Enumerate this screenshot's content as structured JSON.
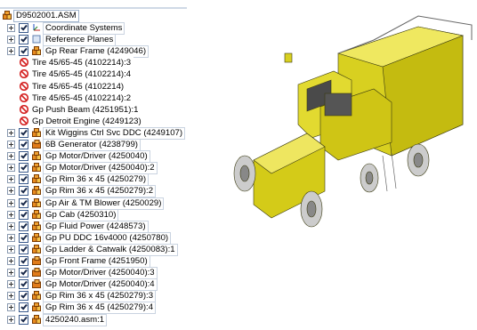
{
  "tree": {
    "root": "D9502001.ASM",
    "items": [
      {
        "label": "Coordinate Systems",
        "icon": "coord"
      },
      {
        "label": "Reference Planes",
        "icon": "plane"
      },
      {
        "label": "Gp Rear Frame (4249046)",
        "icon": "assembly"
      },
      {
        "label": "Tire 45/65-45 (4102214):3",
        "icon": "suppressed"
      },
      {
        "label": "Tire 45/65-45 (4102214):4",
        "icon": "suppressed"
      },
      {
        "label": "Tire 45/65-45 (4102214)",
        "icon": "suppressed"
      },
      {
        "label": "Tire 45/65-45 (4102214):2",
        "icon": "suppressed"
      },
      {
        "label": "Gp Push Beam (4251951):1",
        "icon": "suppressed"
      },
      {
        "label": "Gp Detroit Engine (4249123)",
        "icon": "suppressed"
      },
      {
        "label": "Kit Wiggins Ctrl Svc DDC (4249107)",
        "icon": "assembly"
      },
      {
        "label": "6B Generator (4238799)",
        "icon": "part"
      },
      {
        "label": "Gp Motor/Driver (4250040)",
        "icon": "assembly"
      },
      {
        "label": "Gp Motor/Driver (4250040):2",
        "icon": "assembly"
      },
      {
        "label": "Gp Rim 36 x 45 (4250279)",
        "icon": "assembly"
      },
      {
        "label": "Gp Rim 36 x 45 (4250279):2",
        "icon": "assembly"
      },
      {
        "label": "Gp Air & TM Blower (4250029)",
        "icon": "assembly"
      },
      {
        "label": "Gp Cab (4250310)",
        "icon": "assembly"
      },
      {
        "label": "Gp Fluid Power (4248573)",
        "icon": "assembly"
      },
      {
        "label": "Gp PU DDC 16v4000 (4250780)",
        "icon": "assembly"
      },
      {
        "label": "Gp Ladder & Catwalk (4250083):1",
        "icon": "assembly"
      },
      {
        "label": "Gp Front Frame (4251950)",
        "icon": "part"
      },
      {
        "label": "Gp Motor/Driver (4250040):3",
        "icon": "part"
      },
      {
        "label": "Gp Motor/Driver (4250040):4",
        "icon": "part"
      },
      {
        "label": "Gp Rim 36 x 45 (4250279):3",
        "icon": "assembly"
      },
      {
        "label": "Gp Rim 36 x 45 (4250279):4",
        "icon": "assembly"
      },
      {
        "label": "4250240.asm:1",
        "icon": "assembly"
      }
    ]
  }
}
